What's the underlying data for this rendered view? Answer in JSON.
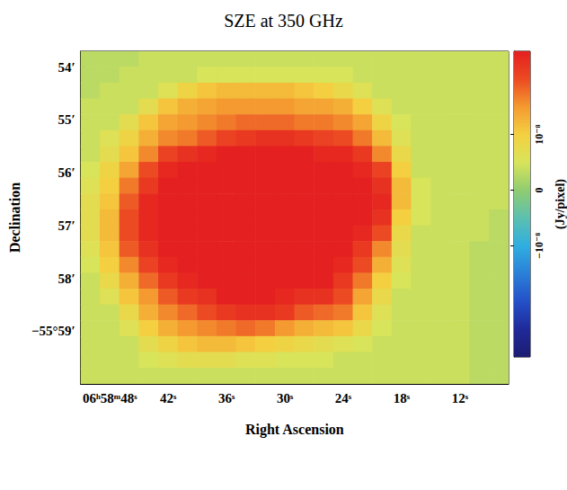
{
  "chart_data": {
    "type": "heatmap",
    "title": "SZE at 350 GHz",
    "x_label": "Right Ascension",
    "y_label": "Declination",
    "xlim": [
      51,
      7
    ],
    "xticks": [
      {
        "value": 48,
        "label": "06ʰ58ᵐ48ˢ"
      },
      {
        "value": 42,
        "label": "42ˢ"
      },
      {
        "value": 36,
        "label": "36ˢ"
      },
      {
        "value": 30,
        "label": "30ˢ"
      },
      {
        "value": 24,
        "label": "24ˢ"
      },
      {
        "value": 18,
        "label": "18ˢ"
      },
      {
        "value": 12,
        "label": "12ˢ"
      }
    ],
    "ylim": [
      60,
      53.7
    ],
    "yticks": [
      {
        "value": 54,
        "label": "54′"
      },
      {
        "value": 55,
        "label": "55′"
      },
      {
        "value": 56,
        "label": "56′"
      },
      {
        "value": 57,
        "label": "57′"
      },
      {
        "value": 58,
        "label": "58′"
      },
      {
        "value": 59,
        "label": "−55°59′"
      }
    ],
    "grid": false,
    "heatmap": {
      "x": [
        50,
        48,
        46,
        44,
        42,
        40,
        38,
        36,
        34,
        32,
        30,
        28,
        26,
        24,
        22,
        20,
        18,
        16,
        14,
        12,
        10,
        8
      ],
      "y": [
        53.85,
        54.15,
        54.45,
        54.75,
        55.05,
        55.35,
        55.65,
        55.95,
        56.25,
        56.55,
        56.85,
        57.15,
        57.45,
        57.75,
        58.05,
        58.35,
        58.65,
        58.95,
        59.25,
        59.55,
        59.85
      ],
      "values": [
        [
          3e-09,
          3e-09,
          3e-09,
          4e-09,
          4e-09,
          4e-09,
          4e-09,
          4e-09,
          4e-09,
          4e-09,
          4e-09,
          4e-09,
          4e-09,
          4e-09,
          4e-09,
          4e-09,
          4e-09,
          4e-09,
          4e-09,
          4e-09,
          4e-09,
          4e-09
        ],
        [
          3e-09,
          3e-09,
          4e-09,
          4e-09,
          4e-09,
          4e-09,
          5e-09,
          5e-09,
          5e-09,
          5e-09,
          5e-09,
          5e-09,
          5e-09,
          5e-09,
          4e-09,
          4e-09,
          4e-09,
          4e-09,
          4e-09,
          4e-09,
          4e-09,
          4e-09
        ],
        [
          3e-09,
          4e-09,
          4e-09,
          4e-09,
          6e-09,
          9e-09,
          1.1e-08,
          1.2e-08,
          1.2e-08,
          1.2e-08,
          1.2e-08,
          1.1e-08,
          1e-08,
          8e-09,
          6e-09,
          4e-09,
          4e-09,
          4e-09,
          4e-09,
          4e-09,
          4e-09,
          4e-09
        ],
        [
          4e-09,
          4e-09,
          4e-09,
          7e-09,
          1.1e-08,
          1.3e-08,
          1.4e-08,
          1.5e-08,
          1.5e-08,
          1.5e-08,
          1.5e-08,
          1.4e-08,
          1.4e-08,
          1.3e-08,
          1e-08,
          6e-09,
          4e-09,
          4e-09,
          4e-09,
          4e-09,
          4e-09,
          4e-09
        ],
        [
          4e-09,
          4e-09,
          7e-09,
          1.1e-08,
          1.4e-08,
          1.5e-08,
          1.6e-08,
          1.7e-08,
          1.8e-08,
          1.8e-08,
          1.8e-08,
          1.7e-08,
          1.7e-08,
          1.6e-08,
          1.4e-08,
          9e-09,
          5e-09,
          4e-09,
          4e-09,
          4e-09,
          4e-09,
          4e-09
        ],
        [
          4e-09,
          6e-09,
          9e-09,
          1.3e-08,
          1.6e-08,
          1.7e-08,
          1.9e-08,
          2.1e-08,
          2.2e-08,
          2.3e-08,
          2.3e-08,
          2.2e-08,
          2.1e-08,
          2e-08,
          1.7e-08,
          1.2e-08,
          6e-09,
          4e-09,
          4e-09,
          4e-09,
          4e-09,
          4e-09
        ],
        [
          4e-09,
          7e-09,
          1.1e-08,
          1.6e-08,
          2.1e-08,
          2.3e-08,
          2.4e-08,
          2.5e-08,
          2.5e-08,
          2.5e-08,
          2.5e-08,
          2.5e-08,
          2.4e-08,
          2.4e-08,
          2.2e-08,
          1.6e-08,
          8e-09,
          4e-09,
          4e-09,
          4e-09,
          4e-09,
          4e-09
        ],
        [
          5e-09,
          9e-09,
          1.4e-08,
          2e-08,
          2.4e-08,
          2.5e-08,
          2.5e-08,
          2.5e-08,
          2.5e-08,
          2.5e-08,
          2.5e-08,
          2.5e-08,
          2.5e-08,
          2.5e-08,
          2.4e-08,
          2.1e-08,
          1e-08,
          4e-09,
          4e-09,
          4e-09,
          4e-09,
          4e-09
        ],
        [
          6e-09,
          1e-08,
          1.7e-08,
          2.2e-08,
          2.5e-08,
          2.5e-08,
          2.5e-08,
          2.5e-08,
          2.5e-08,
          2.5e-08,
          2.5e-08,
          2.5e-08,
          2.5e-08,
          2.5e-08,
          2.5e-08,
          2.3e-08,
          1.2e-08,
          5e-09,
          4e-09,
          4e-09,
          4e-09,
          4e-09
        ],
        [
          7e-09,
          1.1e-08,
          1.9e-08,
          2.4e-08,
          2.5e-08,
          2.5e-08,
          2.5e-08,
          2.5e-08,
          2.5e-08,
          2.5e-08,
          2.5e-08,
          2.5e-08,
          2.5e-08,
          2.5e-08,
          2.5e-08,
          2.4e-08,
          1.2e-08,
          5e-09,
          4e-09,
          4e-09,
          4e-09,
          4e-09
        ],
        [
          7e-09,
          1.2e-08,
          2e-08,
          2.4e-08,
          2.5e-08,
          2.5e-08,
          2.5e-08,
          2.5e-08,
          2.5e-08,
          2.5e-08,
          2.5e-08,
          2.5e-08,
          2.5e-08,
          2.5e-08,
          2.5e-08,
          2.3e-08,
          1e-08,
          5e-09,
          4e-09,
          4e-09,
          4e-09,
          3e-09
        ],
        [
          7e-09,
          1.2e-08,
          2e-08,
          2.4e-08,
          2.5e-08,
          2.5e-08,
          2.5e-08,
          2.5e-08,
          2.5e-08,
          2.5e-08,
          2.5e-08,
          2.5e-08,
          2.5e-08,
          2.5e-08,
          2.4e-08,
          2e-08,
          8e-09,
          4e-09,
          4e-09,
          4e-09,
          4e-09,
          3e-09
        ],
        [
          6e-09,
          1.1e-08,
          1.9e-08,
          2.3e-08,
          2.5e-08,
          2.5e-08,
          2.5e-08,
          2.5e-08,
          2.5e-08,
          2.5e-08,
          2.5e-08,
          2.5e-08,
          2.5e-08,
          2.5e-08,
          2.2e-08,
          1.6e-08,
          7e-09,
          4e-09,
          4e-09,
          4e-09,
          3e-09,
          3e-09
        ],
        [
          5e-09,
          1e-08,
          1.6e-08,
          2.1e-08,
          2.4e-08,
          2.5e-08,
          2.5e-08,
          2.5e-08,
          2.5e-08,
          2.5e-08,
          2.5e-08,
          2.5e-08,
          2.5e-08,
          2.4e-08,
          2e-08,
          1.3e-08,
          6e-09,
          4e-09,
          4e-09,
          4e-09,
          3e-09,
          3e-09
        ],
        [
          4e-09,
          8e-09,
          1.3e-08,
          1.8e-08,
          2.2e-08,
          2.4e-08,
          2.5e-08,
          2.5e-08,
          2.5e-08,
          2.5e-08,
          2.5e-08,
          2.5e-08,
          2.5e-08,
          2.2e-08,
          1.7e-08,
          1e-08,
          5e-09,
          4e-09,
          4e-09,
          4e-09,
          3e-09,
          3e-09
        ],
        [
          4e-09,
          6e-09,
          1.1e-08,
          1.5e-08,
          1.9e-08,
          2.2e-08,
          2.3e-08,
          2.5e-08,
          2.5e-08,
          2.5e-08,
          2.4e-08,
          2.3e-08,
          2.3e-08,
          2e-08,
          1.4e-08,
          8e-09,
          4e-09,
          4e-09,
          4e-09,
          4e-09,
          3e-09,
          3e-09
        ],
        [
          4e-09,
          4e-09,
          8e-09,
          1.3e-08,
          1.6e-08,
          1.8e-08,
          2e-08,
          2.2e-08,
          2.3e-08,
          2.3e-08,
          2.2e-08,
          1.9e-08,
          1.8e-08,
          1.7e-08,
          1.1e-08,
          6e-09,
          4e-09,
          4e-09,
          4e-09,
          4e-09,
          3e-09,
          3e-09
        ],
        [
          4e-09,
          4e-09,
          6e-09,
          1e-08,
          1.3e-08,
          1.5e-08,
          1.6e-08,
          1.7e-08,
          1.8e-08,
          1.7e-08,
          1.5e-08,
          1.3e-08,
          1.2e-08,
          1.1e-08,
          8e-09,
          5e-09,
          4e-09,
          4e-09,
          4e-09,
          4e-09,
          3e-09,
          3e-09
        ],
        [
          4e-09,
          4e-09,
          4e-09,
          7e-09,
          9e-09,
          1.1e-08,
          1.2e-08,
          1.2e-08,
          1.1e-08,
          1e-08,
          9e-09,
          8e-09,
          7e-09,
          6e-09,
          5e-09,
          4e-09,
          4e-09,
          4e-09,
          4e-09,
          4e-09,
          3e-09,
          3e-09
        ],
        [
          4e-09,
          4e-09,
          4e-09,
          5e-09,
          6e-09,
          7e-09,
          7e-09,
          7e-09,
          6e-09,
          6e-09,
          5e-09,
          5e-09,
          5e-09,
          4e-09,
          4e-09,
          4e-09,
          4e-09,
          4e-09,
          4e-09,
          4e-09,
          3e-09,
          3e-09
        ],
        [
          4e-09,
          4e-09,
          4e-09,
          4e-09,
          4e-09,
          4e-09,
          4e-09,
          4e-09,
          4e-09,
          4e-09,
          4e-09,
          4e-09,
          4e-09,
          4e-09,
          4e-09,
          4e-09,
          4e-09,
          4e-09,
          4e-09,
          4e-09,
          3e-09,
          3e-09
        ]
      ]
    },
    "colorbar": {
      "label": "(Jy/pixel)",
      "lim": [
        -3e-08,
        2.5e-08
      ],
      "ticks": [
        {
          "value": -1e-08,
          "label": "−10⁻⁸"
        },
        0,
        {
          "value": 1e-08,
          "label": "10⁻⁸"
        }
      ]
    }
  }
}
